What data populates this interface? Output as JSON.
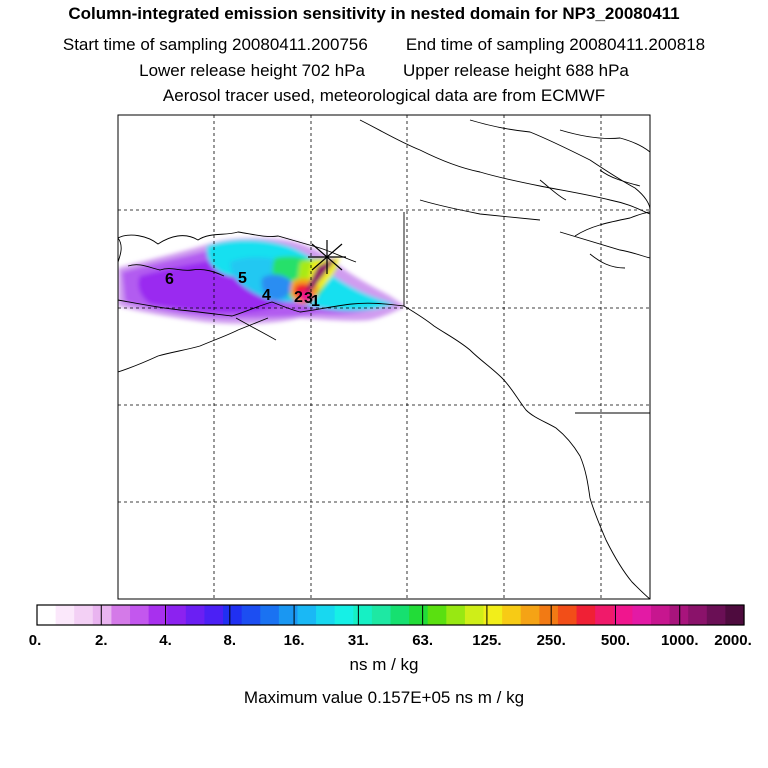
{
  "header": {
    "title": "Column-integrated emission sensitivity in nested domain for NP3_20080411",
    "start_label": "Start time of sampling 20080411.200756",
    "end_label": "End time of sampling 20080411.200818",
    "lower_label": "Lower release height  702 hPa",
    "upper_label": "Upper release height  688 hPa",
    "line4": "Aerosol tracer used, meteorological data are from ECMWF"
  },
  "map": {
    "point_labels": [
      {
        "id": "6",
        "text": "6"
      },
      {
        "id": "5",
        "text": "5"
      },
      {
        "id": "4",
        "text": "4"
      },
      {
        "id": "2",
        "text": "2"
      },
      {
        "id": "3",
        "text": "3"
      },
      {
        "id": "1",
        "text": "1"
      }
    ],
    "release_marker": "asterisk-icon"
  },
  "colorbar": {
    "colors": [
      "#ffffff",
      "#fbe8fb",
      "#f3d0f5",
      "#e9b4f0",
      "#d47ae8",
      "#c357ee",
      "#a830ee",
      "#8c22f0",
      "#6b1ff3",
      "#4b20f5",
      "#2030f2",
      "#1c4ef2",
      "#1a72f2",
      "#1a97f2",
      "#1ab8f5",
      "#18d8f0",
      "#16f0e6",
      "#16f0c4",
      "#1ee8a3",
      "#16e070",
      "#22dc38",
      "#5ae010",
      "#98e812",
      "#cfee18",
      "#f2ee1a",
      "#f7cb15",
      "#f5a315",
      "#f27a14",
      "#f24e18",
      "#f02035",
      "#f01a6a",
      "#f0168e",
      "#e31aa5",
      "#c7168f",
      "#a8147c",
      "#8a126a",
      "#6a0f55",
      "#4e0b3e"
    ],
    "ticks": [
      "0.",
      "2.",
      "4.",
      "8.",
      "16.",
      "31.",
      "63.",
      "125.",
      "250.",
      "500.",
      "1000.",
      "2000."
    ],
    "units": "ns m / kg",
    "max_label": "Maximum value  0.157E+05 ns m / kg"
  }
}
